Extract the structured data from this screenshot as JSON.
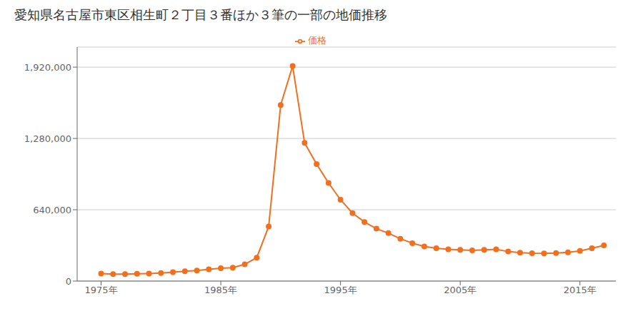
{
  "chart_data": {
    "type": "line",
    "title": "愛知県名古屋市東区相生町２丁目３番ほか３筆の一部の地価推移",
    "x": [
      1975,
      1976,
      1977,
      1978,
      1979,
      1980,
      1981,
      1982,
      1983,
      1984,
      1985,
      1986,
      1987,
      1988,
      1989,
      1990,
      1991,
      1992,
      1993,
      1994,
      1995,
      1996,
      1997,
      1998,
      1999,
      2000,
      2001,
      2002,
      2003,
      2004,
      2005,
      2006,
      2007,
      2008,
      2009,
      2010,
      2011,
      2012,
      2013,
      2014,
      2015,
      2016,
      2017
    ],
    "series": [
      {
        "name": "価格",
        "color": "#f07020",
        "marker": "circle",
        "values": [
          67000,
          62000,
          63000,
          65000,
          68000,
          72000,
          80000,
          88000,
          95000,
          105000,
          115000,
          120000,
          150000,
          210000,
          490000,
          1580000,
          1930000,
          1240000,
          1050000,
          880000,
          730000,
          610000,
          530000,
          470000,
          430000,
          380000,
          340000,
          310000,
          295000,
          285000,
          280000,
          275000,
          280000,
          285000,
          265000,
          255000,
          250000,
          248000,
          252000,
          258000,
          270000,
          295000,
          320000
        ]
      }
    ],
    "xlim": [
      1973,
      2018
    ],
    "xticks": [
      {
        "value": 1975,
        "label": "1975年"
      },
      {
        "value": 1985,
        "label": "1985年"
      },
      {
        "value": 1995,
        "label": "1995年"
      },
      {
        "value": 2005,
        "label": "2005年"
      },
      {
        "value": 2015,
        "label": "2015年"
      }
    ],
    "ylim": [
      0,
      2100000
    ],
    "yticks": [
      0,
      {
        "value": 640000,
        "label": "640,000"
      },
      {
        "value": 1280000,
        "label": "1,280,000"
      },
      {
        "value": 1920000,
        "label": "1,920,000"
      }
    ],
    "grid": true,
    "legend": "top"
  }
}
